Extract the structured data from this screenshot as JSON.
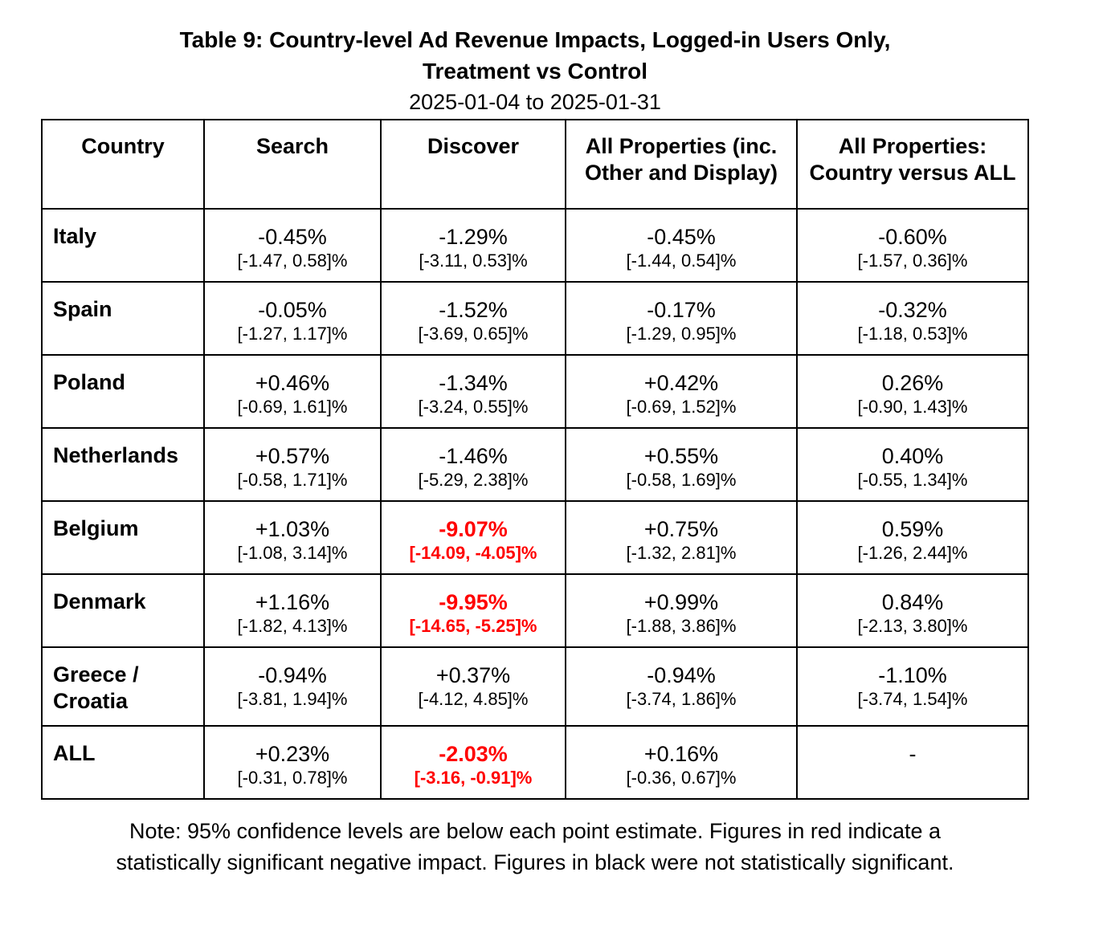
{
  "title_line1": "Table 9: Country-level Ad Revenue Impacts, Logged-in Users Only,",
  "title_line2": "Treatment vs Control",
  "date_range": "2025-01-04 to 2025-01-31",
  "headers": {
    "country": "Country",
    "search": "Search",
    "discover": "Discover",
    "all_properties": "All Properties (inc. Other and Display)",
    "country_vs_all": "All Properties: Country versus ALL"
  },
  "rows": [
    {
      "country": "Italy",
      "search": {
        "pt": "-0.45%",
        "ci": "[-1.47, 0.58]%"
      },
      "discover": {
        "pt": "-1.29%",
        "ci": "[-3.11, 0.53]%"
      },
      "all": {
        "pt": "-0.45%",
        "ci": "[-1.44, 0.54]%"
      },
      "vs_all": {
        "pt": "-0.60%",
        "ci": "[-1.57, 0.36]%"
      }
    },
    {
      "country": "Spain",
      "search": {
        "pt": "-0.05%",
        "ci": "[-1.27, 1.17]%"
      },
      "discover": {
        "pt": "-1.52%",
        "ci": "[-3.69, 0.65]%"
      },
      "all": {
        "pt": "-0.17%",
        "ci": "[-1.29, 0.95]%"
      },
      "vs_all": {
        "pt": "-0.32%",
        "ci": "[-1.18, 0.53]%"
      }
    },
    {
      "country": "Poland",
      "search": {
        "pt": "+0.46%",
        "ci": "[-0.69, 1.61]%"
      },
      "discover": {
        "pt": "-1.34%",
        "ci": "[-3.24, 0.55]%"
      },
      "all": {
        "pt": "+0.42%",
        "ci": "[-0.69, 1.52]%"
      },
      "vs_all": {
        "pt": "0.26%",
        "ci": "[-0.90, 1.43]%"
      }
    },
    {
      "country": "Netherlands",
      "search": {
        "pt": "+0.57%",
        "ci": "[-0.58, 1.71]%"
      },
      "discover": {
        "pt": "-1.46%",
        "ci": "[-5.29, 2.38]%"
      },
      "all": {
        "pt": "+0.55%",
        "ci": "[-0.58, 1.69]%"
      },
      "vs_all": {
        "pt": "0.40%",
        "ci": "[-0.55, 1.34]%"
      }
    },
    {
      "country": "Belgium",
      "search": {
        "pt": "+1.03%",
        "ci": "[-1.08, 3.14]%"
      },
      "discover": {
        "pt": "-9.07%",
        "ci": "[-14.09, -4.05]%"
      },
      "all": {
        "pt": "+0.75%",
        "ci": "[-1.32, 2.81]%"
      },
      "vs_all": {
        "pt": "0.59%",
        "ci": "[-1.26, 2.44]%"
      }
    },
    {
      "country": "Denmark",
      "search": {
        "pt": "+1.16%",
        "ci": "[-1.82, 4.13]%"
      },
      "discover": {
        "pt": "-9.95%",
        "ci": "[-14.65, -5.25]%"
      },
      "all": {
        "pt": "+0.99%",
        "ci": "[-1.88, 3.86]%"
      },
      "vs_all": {
        "pt": "0.84%",
        "ci": "[-2.13, 3.80]%"
      }
    },
    {
      "country": "Greece / Croatia",
      "search": {
        "pt": "-0.94%",
        "ci": "[-3.81, 1.94]%"
      },
      "discover": {
        "pt": "+0.37%",
        "ci": "[-4.12, 4.85]%"
      },
      "all": {
        "pt": "-0.94%",
        "ci": "[-3.74, 1.86]%"
      },
      "vs_all": {
        "pt": "-1.10%",
        "ci": "[-3.74, 1.54]%"
      }
    },
    {
      "country": "ALL",
      "search": {
        "pt": "+0.23%",
        "ci": "[-0.31, 0.78]%"
      },
      "discover": {
        "pt": "-2.03%",
        "ci": "[-3.16, -0.91]%"
      },
      "all": {
        "pt": "+0.16%",
        "ci": "[-0.36, 0.67]%"
      },
      "vs_all": {
        "pt": "-",
        "ci": ""
      }
    }
  ],
  "significant_color": "#ff0000",
  "note_line1": "Note: 95% confidence levels are below each point estimate.  Figures in red indicate a",
  "note_line2": "statistically significant negative impact.  Figures in black were not statistically significant."
}
